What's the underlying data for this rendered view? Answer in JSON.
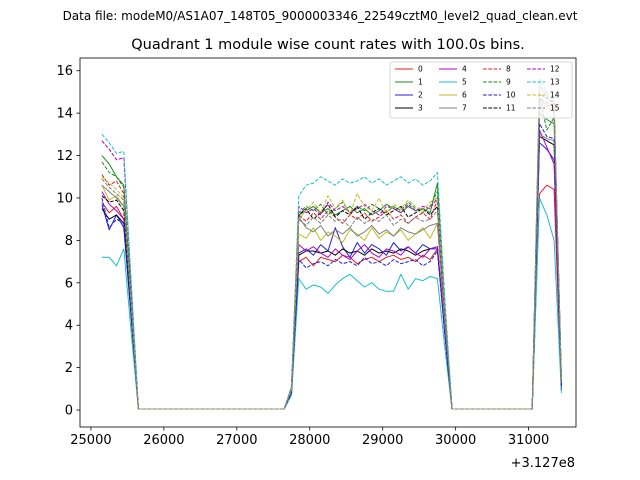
{
  "supertitle": "Data file: modeM0/AS1A07_148T05_9000003346_22549cztM0_level2_quad_clean.evt",
  "chart_data": {
    "type": "line",
    "title": "Quadrant 1 module wise count rates with 100.0s bins.",
    "xlabel": "",
    "ylabel": "",
    "x_offset_label": "+3.127e8",
    "xlim": [
      24850,
      31650
    ],
    "ylim": [
      -0.8,
      16.6
    ],
    "xticks": [
      25000,
      26000,
      27000,
      28000,
      29000,
      30000,
      31000
    ],
    "yticks": [
      0,
      2,
      4,
      6,
      8,
      10,
      12,
      14,
      16
    ],
    "grid": false,
    "legend": "top-right",
    "x": [
      25150,
      25250,
      25350,
      25450,
      25550,
      25650,
      25750,
      25850,
      25950,
      26050,
      26150,
      26250,
      26350,
      26450,
      26550,
      26650,
      26750,
      26850,
      26950,
      27050,
      27150,
      27250,
      27350,
      27450,
      27550,
      27650,
      27750,
      27850,
      27950,
      28050,
      28150,
      28250,
      28350,
      28450,
      28550,
      28650,
      28750,
      28850,
      28950,
      29050,
      29150,
      29250,
      29350,
      29450,
      29550,
      29650,
      29750,
      29850,
      29950,
      30050,
      30150,
      30250,
      30350,
      30450,
      30550,
      30650,
      30750,
      30850,
      30950,
      31050,
      31150,
      31250,
      31350,
      31450
    ],
    "series": [
      {
        "name": "0",
        "color": "#e41a1c",
        "dash": false,
        "values": [
          9.8,
          9.3,
          9.6,
          9.0,
          4.5,
          0.05,
          0.05,
          0.05,
          0.05,
          0.05,
          0.05,
          0.05,
          0.05,
          0.05,
          0.05,
          0.05,
          0.05,
          0.05,
          0.05,
          0.05,
          0.05,
          0.05,
          0.05,
          0.05,
          0.05,
          0.05,
          0.8,
          7.0,
          7.2,
          6.8,
          7.2,
          7.1,
          7.0,
          7.3,
          7.2,
          6.9,
          7.1,
          7.2,
          7.0,
          7.2,
          7.3,
          7.1,
          7.2,
          7.0,
          7.3,
          7.1,
          7.6,
          3.8,
          0.05,
          0.05,
          0.05,
          0.05,
          0.05,
          0.05,
          0.05,
          0.05,
          0.05,
          0.05,
          0.05,
          0.05,
          10.2,
          10.6,
          10.4,
          0.9
        ]
      },
      {
        "name": "1",
        "color": "#1b8a1b",
        "dash": false,
        "values": [
          12.0,
          11.6,
          11.0,
          10.6,
          5.4,
          0.05,
          0.05,
          0.05,
          0.05,
          0.05,
          0.05,
          0.05,
          0.05,
          0.05,
          0.05,
          0.05,
          0.05,
          0.05,
          0.05,
          0.05,
          0.05,
          0.05,
          0.05,
          0.05,
          0.05,
          0.05,
          1.0,
          9.2,
          9.4,
          9.6,
          9.3,
          9.5,
          9.2,
          9.4,
          9.6,
          9.3,
          9.5,
          9.2,
          9.4,
          9.7,
          9.5,
          9.3,
          9.6,
          9.4,
          9.5,
          9.3,
          10.7,
          4.9,
          0.05,
          0.05,
          0.05,
          0.05,
          0.05,
          0.05,
          0.05,
          0.05,
          0.05,
          0.05,
          0.05,
          0.05,
          14.0,
          13.7,
          13.5,
          1.3
        ]
      },
      {
        "name": "2",
        "color": "#1f1fe0",
        "dash": false,
        "values": [
          9.7,
          8.5,
          9.2,
          8.6,
          4.4,
          0.05,
          0.05,
          0.05,
          0.05,
          0.05,
          0.05,
          0.05,
          0.05,
          0.05,
          0.05,
          0.05,
          0.05,
          0.05,
          0.05,
          0.05,
          0.05,
          0.05,
          0.05,
          0.05,
          0.05,
          0.05,
          0.8,
          7.4,
          7.6,
          7.3,
          7.8,
          7.5,
          8.6,
          7.7,
          7.2,
          7.9,
          7.4,
          7.8,
          7.6,
          7.3,
          7.9,
          7.5,
          7.7,
          7.4,
          7.8,
          7.6,
          7.6,
          3.7,
          0.05,
          0.05,
          0.05,
          0.05,
          0.05,
          0.05,
          0.05,
          0.05,
          0.05,
          0.05,
          0.05,
          0.05,
          12.6,
          12.3,
          11.8,
          1.1
        ]
      },
      {
        "name": "3",
        "color": "#000000",
        "dash": false,
        "values": [
          9.5,
          9.0,
          9.2,
          8.8,
          4.6,
          0.05,
          0.05,
          0.05,
          0.05,
          0.05,
          0.05,
          0.05,
          0.05,
          0.05,
          0.05,
          0.05,
          0.05,
          0.05,
          0.05,
          0.05,
          0.05,
          0.05,
          0.05,
          0.05,
          0.05,
          0.05,
          0.9,
          7.3,
          7.5,
          7.5,
          7.4,
          7.5,
          7.3,
          7.6,
          7.4,
          7.5,
          7.3,
          7.6,
          7.4,
          7.5,
          7.4,
          7.6,
          7.5,
          7.3,
          7.5,
          7.6,
          7.7,
          3.8,
          0.05,
          0.05,
          0.05,
          0.05,
          0.05,
          0.05,
          0.05,
          0.05,
          0.05,
          0.05,
          0.05,
          0.05,
          12.9,
          12.7,
          12.5,
          1.2
        ]
      },
      {
        "name": "4",
        "color": "#b000c8",
        "dash": false,
        "values": [
          10.3,
          9.7,
          9.4,
          9.0,
          4.7,
          0.05,
          0.05,
          0.05,
          0.05,
          0.05,
          0.05,
          0.05,
          0.05,
          0.05,
          0.05,
          0.05,
          0.05,
          0.05,
          0.05,
          0.05,
          0.05,
          0.05,
          0.05,
          0.05,
          0.05,
          0.05,
          0.9,
          7.8,
          7.5,
          7.7,
          7.4,
          7.2,
          7.6,
          7.3,
          7.1,
          7.5,
          7.8,
          7.4,
          7.2,
          7.6,
          7.5,
          7.3,
          7.7,
          7.4,
          7.2,
          7.6,
          7.7,
          3.9,
          0.05,
          0.05,
          0.05,
          0.05,
          0.05,
          0.05,
          0.05,
          0.05,
          0.05,
          0.05,
          0.05,
          0.05,
          13.2,
          12.4,
          11.6,
          1.2
        ]
      },
      {
        "name": "5",
        "color": "#17becf",
        "dash": false,
        "values": [
          7.2,
          7.2,
          6.8,
          7.6,
          3.7,
          0.05,
          0.05,
          0.05,
          0.05,
          0.05,
          0.05,
          0.05,
          0.05,
          0.05,
          0.05,
          0.05,
          0.05,
          0.05,
          0.05,
          0.05,
          0.05,
          0.05,
          0.05,
          0.05,
          0.05,
          0.05,
          0.7,
          6.2,
          5.7,
          5.9,
          5.8,
          5.5,
          5.9,
          6.2,
          6.4,
          6.1,
          5.8,
          6.0,
          5.7,
          5.6,
          5.6,
          6.4,
          5.7,
          6.2,
          6.1,
          6.3,
          6.2,
          3.0,
          0.05,
          0.05,
          0.05,
          0.05,
          0.05,
          0.05,
          0.05,
          0.05,
          0.05,
          0.05,
          0.05,
          0.05,
          10.0,
          9.2,
          8.0,
          0.8
        ]
      },
      {
        "name": "6",
        "color": "#bcbd22",
        "dash": false,
        "values": [
          10.6,
          9.9,
          10.1,
          9.6,
          4.9,
          0.05,
          0.05,
          0.05,
          0.05,
          0.05,
          0.05,
          0.05,
          0.05,
          0.05,
          0.05,
          0.05,
          0.05,
          0.05,
          0.05,
          0.05,
          0.05,
          0.05,
          0.05,
          0.05,
          0.05,
          0.05,
          0.9,
          8.3,
          8.1,
          8.6,
          8.0,
          8.4,
          8.2,
          7.9,
          8.5,
          8.3,
          8.0,
          8.6,
          8.1,
          8.4,
          8.2,
          8.5,
          8.0,
          8.3,
          8.6,
          8.1,
          8.8,
          4.2,
          0.05,
          0.05,
          0.05,
          0.05,
          0.05,
          0.05,
          0.05,
          0.05,
          0.05,
          0.05,
          0.05,
          0.05,
          14.5,
          14.3,
          14.0,
          1.3
        ]
      },
      {
        "name": "7",
        "color": "#7f7f7f",
        "dash": false,
        "values": [
          10.6,
          10.3,
          10.0,
          9.6,
          4.9,
          0.05,
          0.05,
          0.05,
          0.05,
          0.05,
          0.05,
          0.05,
          0.05,
          0.05,
          0.05,
          0.05,
          0.05,
          0.05,
          0.05,
          0.05,
          0.05,
          0.05,
          0.05,
          0.05,
          0.05,
          0.05,
          1.0,
          9.1,
          8.6,
          8.4,
          8.7,
          8.2,
          8.5,
          8.3,
          8.6,
          8.2,
          8.4,
          8.7,
          8.3,
          8.5,
          8.2,
          8.6,
          8.4,
          8.3,
          8.5,
          8.7,
          8.8,
          4.3,
          0.05,
          0.05,
          0.05,
          0.05,
          0.05,
          0.05,
          0.05,
          0.05,
          0.05,
          0.05,
          0.05,
          0.05,
          13.0,
          12.8,
          12.7,
          1.2
        ]
      },
      {
        "name": "8",
        "color": "#e41a1c",
        "dash": true,
        "values": [
          11.1,
          10.6,
          10.8,
          10.2,
          5.1,
          0.05,
          0.05,
          0.05,
          0.05,
          0.05,
          0.05,
          0.05,
          0.05,
          0.05,
          0.05,
          0.05,
          0.05,
          0.05,
          0.05,
          0.05,
          0.05,
          0.05,
          0.05,
          0.05,
          0.05,
          0.05,
          1.0,
          9.2,
          8.9,
          9.3,
          9.0,
          9.4,
          9.1,
          8.8,
          9.2,
          9.0,
          9.3,
          8.9,
          9.1,
          9.4,
          9.0,
          9.2,
          8.8,
          9.1,
          9.3,
          9.0,
          9.9,
          4.7,
          0.05,
          0.05,
          0.05,
          0.05,
          0.05,
          0.05,
          0.05,
          0.05,
          0.05,
          0.05,
          0.05,
          0.05,
          14.7,
          14.5,
          14.3,
          1.3
        ]
      },
      {
        "name": "9",
        "color": "#1b8a1b",
        "dash": true,
        "values": [
          11.7,
          11.2,
          11.0,
          10.5,
          5.3,
          0.05,
          0.05,
          0.05,
          0.05,
          0.05,
          0.05,
          0.05,
          0.05,
          0.05,
          0.05,
          0.05,
          0.05,
          0.05,
          0.05,
          0.05,
          0.05,
          0.05,
          0.05,
          0.05,
          0.05,
          0.05,
          1.0,
          9.3,
          9.6,
          9.4,
          9.7,
          9.2,
          9.5,
          9.8,
          9.3,
          9.6,
          9.4,
          9.7,
          9.5,
          9.3,
          9.6,
          9.4,
          9.8,
          9.5,
          9.3,
          9.6,
          10.3,
          4.9,
          0.05,
          0.05,
          0.05,
          0.05,
          0.05,
          0.05,
          0.05,
          0.05,
          0.05,
          0.05,
          0.05,
          0.05,
          14.8,
          13.2,
          13.8,
          1.4
        ]
      },
      {
        "name": "10",
        "color": "#1f1fe0",
        "dash": true,
        "values": [
          10.0,
          8.6,
          9.0,
          8.8,
          4.5,
          0.05,
          0.05,
          0.05,
          0.05,
          0.05,
          0.05,
          0.05,
          0.05,
          0.05,
          0.05,
          0.05,
          0.05,
          0.05,
          0.05,
          0.05,
          0.05,
          0.05,
          0.05,
          0.05,
          0.05,
          0.05,
          0.8,
          7.1,
          6.7,
          6.9,
          7.0,
          6.8,
          7.1,
          6.9,
          7.0,
          6.8,
          7.2,
          6.9,
          7.0,
          6.8,
          7.1,
          6.9,
          7.0,
          7.1,
          6.8,
          7.0,
          7.5,
          3.6,
          0.05,
          0.05,
          0.05,
          0.05,
          0.05,
          0.05,
          0.05,
          0.05,
          0.05,
          0.05,
          0.05,
          0.05,
          13.5,
          12.9,
          12.8,
          1.0
        ]
      },
      {
        "name": "11",
        "color": "#000000",
        "dash": true,
        "values": [
          10.1,
          9.8,
          9.9,
          9.4,
          4.8,
          0.05,
          0.05,
          0.05,
          0.05,
          0.05,
          0.05,
          0.05,
          0.05,
          0.05,
          0.05,
          0.05,
          0.05,
          0.05,
          0.05,
          0.05,
          0.05,
          0.05,
          0.05,
          0.05,
          0.05,
          0.05,
          1.0,
          9.2,
          9.5,
          9.0,
          9.3,
          9.7,
          9.1,
          9.4,
          9.2,
          9.6,
          9.0,
          9.3,
          9.5,
          9.2,
          9.4,
          9.6,
          9.1,
          9.3,
          9.5,
          9.2,
          9.6,
          4.6,
          0.05,
          0.05,
          0.05,
          0.05,
          0.05,
          0.05,
          0.05,
          0.05,
          0.05,
          0.05,
          0.05,
          0.05,
          14.9,
          14.7,
          14.5,
          1.4
        ]
      },
      {
        "name": "12",
        "color": "#b000c8",
        "dash": true,
        "values": [
          12.7,
          12.3,
          11.8,
          11.9,
          6.0,
          0.05,
          0.05,
          0.05,
          0.05,
          0.05,
          0.05,
          0.05,
          0.05,
          0.05,
          0.05,
          0.05,
          0.05,
          0.05,
          0.05,
          0.05,
          0.05,
          0.05,
          0.05,
          0.05,
          0.05,
          0.05,
          1.1,
          9.6,
          9.3,
          9.5,
          9.2,
          9.8,
          9.4,
          9.6,
          9.3,
          9.5,
          9.7,
          9.4,
          9.2,
          9.6,
          9.5,
          9.3,
          9.7,
          9.4,
          9.6,
          9.5,
          10.0,
          4.8,
          0.05,
          0.05,
          0.05,
          0.05,
          0.05,
          0.05,
          0.05,
          0.05,
          0.05,
          0.05,
          0.05,
          0.05,
          14.6,
          14.4,
          14.2,
          1.4
        ]
      },
      {
        "name": "13",
        "color": "#17becf",
        "dash": true,
        "values": [
          13.0,
          12.6,
          12.1,
          12.2,
          6.1,
          0.05,
          0.05,
          0.05,
          0.05,
          0.05,
          0.05,
          0.05,
          0.05,
          0.05,
          0.05,
          0.05,
          0.05,
          0.05,
          0.05,
          0.05,
          0.05,
          0.05,
          0.05,
          0.05,
          0.05,
          0.05,
          1.1,
          10.1,
          10.6,
          10.7,
          11.0,
          10.8,
          10.6,
          10.9,
          10.7,
          10.8,
          11.0,
          10.7,
          10.9,
          10.6,
          10.8,
          11.0,
          10.7,
          10.9,
          10.6,
          10.8,
          11.2,
          5.4,
          0.05,
          0.05,
          0.05,
          0.05,
          0.05,
          0.05,
          0.05,
          0.05,
          0.05,
          0.05,
          0.05,
          0.05,
          15.6,
          15.0,
          14.6,
          1.5
        ]
      },
      {
        "name": "14",
        "color": "#bcbd22",
        "dash": true,
        "values": [
          11.0,
          10.7,
          10.4,
          10.0,
          5.0,
          0.05,
          0.05,
          0.05,
          0.05,
          0.05,
          0.05,
          0.05,
          0.05,
          0.05,
          0.05,
          0.05,
          0.05,
          0.05,
          0.05,
          0.05,
          0.05,
          0.05,
          0.05,
          0.05,
          0.05,
          0.05,
          1.0,
          9.0,
          9.4,
          9.8,
          9.3,
          10.1,
          9.5,
          9.9,
          9.2,
          10.2,
          9.6,
          9.4,
          10.0,
          9.3,
          9.7,
          9.5,
          9.9,
          9.6,
          9.4,
          9.8,
          10.0,
          4.8,
          0.05,
          0.05,
          0.05,
          0.05,
          0.05,
          0.05,
          0.05,
          0.05,
          0.05,
          0.05,
          0.05,
          0.05,
          15.2,
          14.8,
          14.4,
          1.4
        ]
      },
      {
        "name": "15",
        "color": "#7f7f7f",
        "dash": true,
        "values": [
          10.9,
          10.5,
          10.2,
          9.9,
          5.0,
          0.05,
          0.05,
          0.05,
          0.05,
          0.05,
          0.05,
          0.05,
          0.05,
          0.05,
          0.05,
          0.05,
          0.05,
          0.05,
          0.05,
          0.05,
          0.05,
          0.05,
          0.05,
          0.05,
          0.05,
          0.05,
          1.0,
          9.0,
          8.7,
          9.1,
          8.8,
          9.2,
          8.9,
          9.0,
          8.6,
          9.1,
          8.8,
          9.0,
          8.9,
          9.2,
          8.7,
          9.0,
          8.8,
          9.1,
          8.9,
          9.0,
          9.4,
          4.5,
          0.05,
          0.05,
          0.05,
          0.05,
          0.05,
          0.05,
          0.05,
          0.05,
          0.05,
          0.05,
          0.05,
          0.05,
          15.3,
          14.9,
          14.2,
          1.4
        ]
      }
    ]
  }
}
